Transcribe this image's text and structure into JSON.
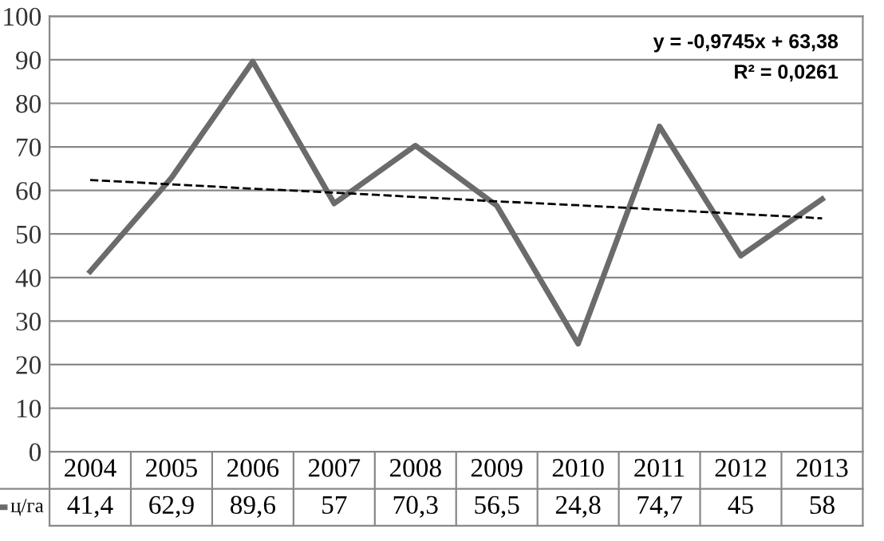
{
  "chart_data": {
    "type": "line",
    "categories": [
      "2004",
      "2005",
      "2006",
      "2007",
      "2008",
      "2009",
      "2010",
      "2011",
      "2012",
      "2013"
    ],
    "series": [
      {
        "name": "ц/га",
        "color": "#6b6b6b",
        "values": [
          41.4,
          62.9,
          89.6,
          57,
          70.3,
          56.5,
          24.8,
          74.7,
          45,
          58
        ],
        "value_labels": [
          "41,4",
          "62,9",
          "89,6",
          "57",
          "70,3",
          "56,5",
          "24,8",
          "74,7",
          "45",
          "58"
        ]
      },
      {
        "type": "line",
        "color": "#000000",
        "line_style": "dashed",
        "values": [
          62.4,
          61.4,
          60.4,
          59.5,
          58.5,
          57.5,
          56.6,
          55.6,
          54.6,
          53.6
        ]
      }
    ],
    "ylim": [
      0,
      100
    ],
    "yticks": [
      0,
      10,
      20,
      30,
      40,
      50,
      60,
      70,
      80,
      90,
      100
    ],
    "grid": "y",
    "legend": "bottom",
    "annotations": [
      "y = -0,9745x + 63,38",
      "R² = 0,0261"
    ]
  }
}
